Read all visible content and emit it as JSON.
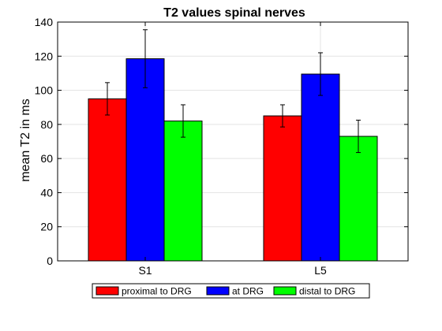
{
  "chart_data": {
    "type": "bar",
    "title": "T2 values spinal nerves",
    "ylabel": "mean T2 in ms",
    "xlabel": "",
    "categories": [
      "S1",
      "L5"
    ],
    "ylim": [
      0,
      140
    ],
    "yticks": [
      0,
      20,
      40,
      60,
      80,
      100,
      120,
      140
    ],
    "grid": true,
    "legend_position": "bottom",
    "series": [
      {
        "name": "proximal to DRG",
        "color": "#ff0000",
        "values": [
          95,
          85
        ],
        "errors": [
          9.5,
          6.5
        ]
      },
      {
        "name": "at DRG",
        "color": "#0000ff",
        "values": [
          118.5,
          109.5
        ],
        "errors": [
          17,
          12.5
        ]
      },
      {
        "name": "distal to DRG",
        "color": "#00ff00",
        "values": [
          82,
          73
        ],
        "errors": [
          9.5,
          9.5
        ]
      }
    ]
  }
}
